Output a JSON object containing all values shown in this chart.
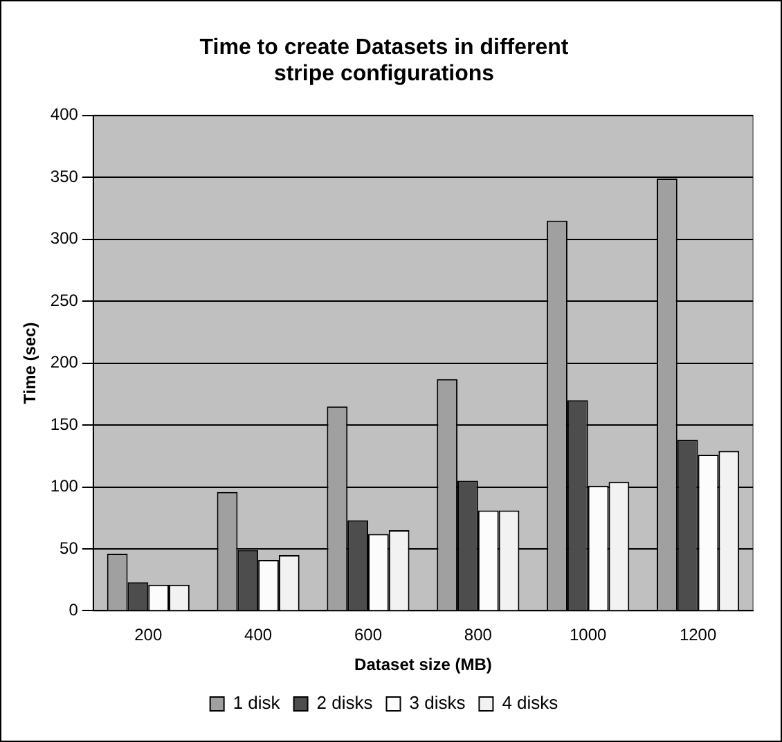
{
  "chart_data": {
    "type": "bar",
    "title": "Time to create Datasets in different stripe configurations",
    "xlabel": "Dataset size (MB)",
    "ylabel": "Time (sec)",
    "categories": [
      "200",
      "400",
      "600",
      "800",
      "1000",
      "1200"
    ],
    "series": [
      {
        "name": "1 disk",
        "color": "#a0a0a0",
        "values": [
          46,
          96,
          165,
          187,
          315,
          349
        ]
      },
      {
        "name": "2 disks",
        "color": "#4d4d4d",
        "values": [
          23,
          49,
          73,
          105,
          170,
          138
        ]
      },
      {
        "name": "3 disks",
        "color": "#fcfcfc",
        "values": [
          21,
          41,
          62,
          81,
          101,
          126
        ]
      },
      {
        "name": "4 disks",
        "color": "#f2f2f2",
        "values": [
          21,
          45,
          65,
          81,
          104,
          129
        ]
      }
    ],
    "ylim": [
      0,
      400
    ],
    "yticks": [
      0,
      50,
      100,
      150,
      200,
      250,
      300,
      350,
      400
    ],
    "grid": "y",
    "legend": "bottom"
  }
}
